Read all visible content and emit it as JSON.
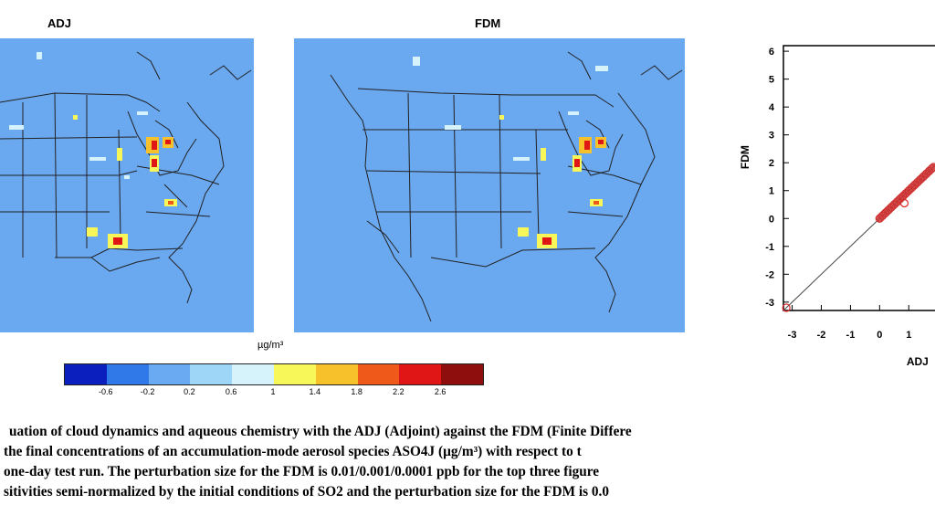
{
  "panels": {
    "left_title": "ADJ",
    "right_title": "FDM"
  },
  "unit_label": "µg/m³",
  "colorbar": {
    "colors": [
      "#0b1fbf",
      "#2f7ae8",
      "#69aaf2",
      "#9ed6f8",
      "#d6f2fb",
      "#f8f75a",
      "#f7c12c",
      "#ef5a1b",
      "#e01616",
      "#8e0d0d"
    ],
    "ticks": [
      "-0.6",
      "-0.2",
      "0.2",
      "0.6",
      "1",
      "1.4",
      "1.8",
      "2.2",
      "2.6"
    ]
  },
  "chart_data": {
    "type": "scatter",
    "xlabel": "ADJ",
    "ylabel": "FDM",
    "x_ticks": [
      "-3",
      "-2",
      "-1",
      "0",
      "1"
    ],
    "y_ticks": [
      "6",
      "5",
      "4",
      "3",
      "2",
      "1",
      "0",
      "-1",
      "-2",
      "-3"
    ],
    "xlim": [
      -3.3,
      1.9
    ],
    "ylim": [
      -3.3,
      6.2
    ],
    "points": [
      {
        "x": -3.2,
        "y": -3.2
      },
      {
        "x": 0.0,
        "y": 0.0
      },
      {
        "x": 0.1,
        "y": 0.1
      },
      {
        "x": 0.2,
        "y": 0.2
      },
      {
        "x": 0.3,
        "y": 0.3
      },
      {
        "x": 0.4,
        "y": 0.4
      },
      {
        "x": 0.5,
        "y": 0.5
      },
      {
        "x": 0.6,
        "y": 0.6
      },
      {
        "x": 0.7,
        "y": 0.7
      },
      {
        "x": 0.8,
        "y": 0.8
      },
      {
        "x": 0.85,
        "y": 0.55
      },
      {
        "x": 0.9,
        "y": 0.9
      },
      {
        "x": 1.0,
        "y": 1.0
      },
      {
        "x": 1.1,
        "y": 1.1
      },
      {
        "x": 1.2,
        "y": 1.2
      },
      {
        "x": 1.3,
        "y": 1.3
      },
      {
        "x": 1.4,
        "y": 1.4
      },
      {
        "x": 1.5,
        "y": 1.5
      },
      {
        "x": 1.6,
        "y": 1.6
      },
      {
        "x": 1.7,
        "y": 1.7
      },
      {
        "x": 1.8,
        "y": 1.8
      }
    ],
    "reference_line": [
      [
        -3.3,
        -3.3
      ],
      [
        1.9,
        1.9
      ]
    ]
  },
  "caption": {
    "line1": "uation of cloud dynamics and aqueous chemistry with the ADJ (Adjoint) against the FDM (Finite Differe",
    "line2": "the final concentrations of an accumulation-mode aerosol species ASO4J (µg/m³) with respect to t",
    "line3": "one-day test run. The perturbation size for the FDM is 0.01/0.001/0.0001 ppb for the top three figure",
    "line4": "sitivities semi-normalized by the initial conditions of SO2 and the perturbation size for the FDM is 0.0"
  }
}
